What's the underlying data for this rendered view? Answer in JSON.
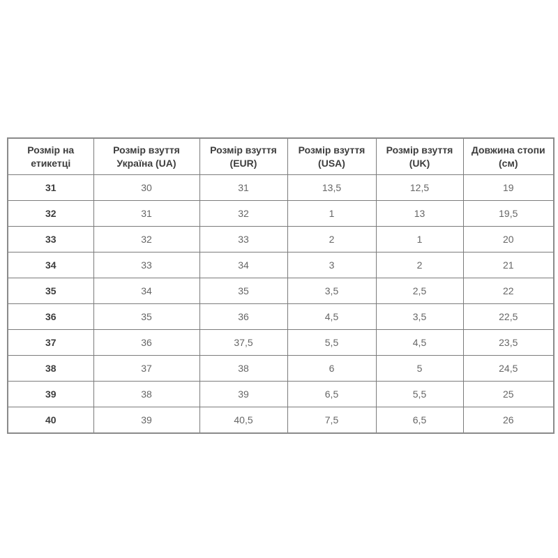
{
  "page": {
    "background_color": "#ffffff"
  },
  "table": {
    "name": "shoe-size-conversion-table",
    "colors": {
      "border": "#7b7b7b",
      "outer_border": "#8a8a8a",
      "header_text": "#3d3d3d",
      "cell_text": "#666666",
      "row_background": "#ffffff"
    },
    "headers": [
      "Розмір на етикетці",
      "Розмір взуття Україна (UA)",
      "Розмір взуття (EUR)",
      "Розмір взуття (USA)",
      "Розмір взуття (UK)",
      "Довжина стопи (см)"
    ],
    "rows": [
      [
        "31",
        "30",
        "31",
        "13,5",
        "12,5",
        "19"
      ],
      [
        "32",
        "31",
        "32",
        "1",
        "13",
        "19,5"
      ],
      [
        "33",
        "32",
        "33",
        "2",
        "1",
        "20"
      ],
      [
        "34",
        "33",
        "34",
        "3",
        "2",
        "21"
      ],
      [
        "35",
        "34",
        "35",
        "3,5",
        "2,5",
        "22"
      ],
      [
        "36",
        "35",
        "36",
        "4,5",
        "3,5",
        "22,5"
      ],
      [
        "37",
        "36",
        "37,5",
        "5,5",
        "4,5",
        "23,5"
      ],
      [
        "38",
        "37",
        "38",
        "6",
        "5",
        "24,5"
      ],
      [
        "39",
        "38",
        "39",
        "6,5",
        "5,5",
        "25"
      ],
      [
        "40",
        "39",
        "40,5",
        "7,5",
        "6,5",
        "26"
      ]
    ]
  }
}
